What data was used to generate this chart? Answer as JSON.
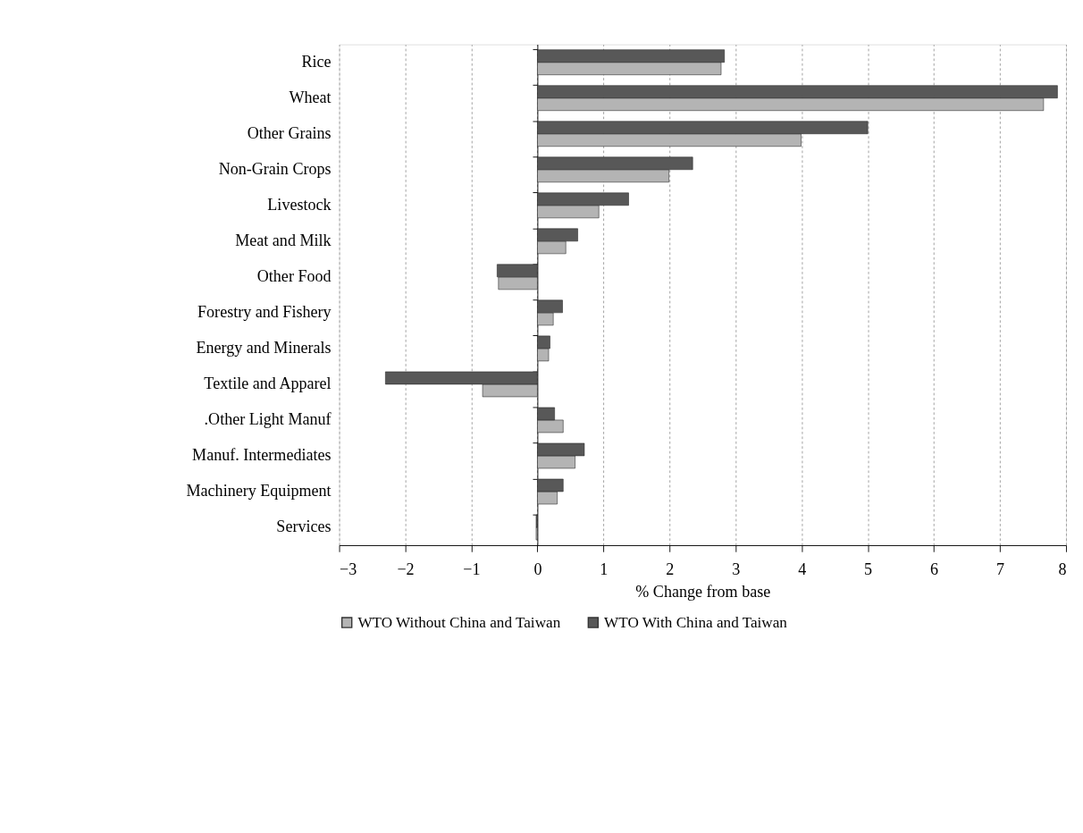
{
  "chart_data": {
    "type": "bar",
    "orientation": "horizontal",
    "xlabel": "% Change from base",
    "categories": [
      "Rice",
      "Wheat",
      "Other Grains",
      "Non-Grain Crops",
      "Livestock",
      "Meat and Milk",
      "Other Food",
      "Forestry and Fishery",
      "Energy and Minerals",
      "Textile and Apparel",
      ".Other Light Manuf",
      "Manuf. Intermediates",
      "Machinery Equipment",
      "Services"
    ],
    "series": [
      {
        "name": "WTO Without China and Taiwan",
        "color": "#b4b4b4",
        "values": [
          2.78,
          7.66,
          3.99,
          1.99,
          0.93,
          0.43,
          -0.59,
          0.24,
          0.17,
          -0.83,
          0.39,
          0.57,
          0.3,
          -0.02
        ]
      },
      {
        "name": "WTO With China and Taiwan",
        "color": "#585858",
        "values": [
          2.83,
          7.87,
          5.0,
          2.35,
          1.38,
          0.61,
          -0.61,
          0.38,
          0.19,
          -2.3,
          0.26,
          0.71,
          0.39,
          -0.02
        ]
      }
    ],
    "xlim": [
      -3,
      8
    ],
    "xticks": [
      -3,
      -2,
      -1,
      0,
      1,
      2,
      3,
      4,
      5,
      6,
      7,
      8
    ],
    "grid": "x",
    "legend": "bottom"
  }
}
